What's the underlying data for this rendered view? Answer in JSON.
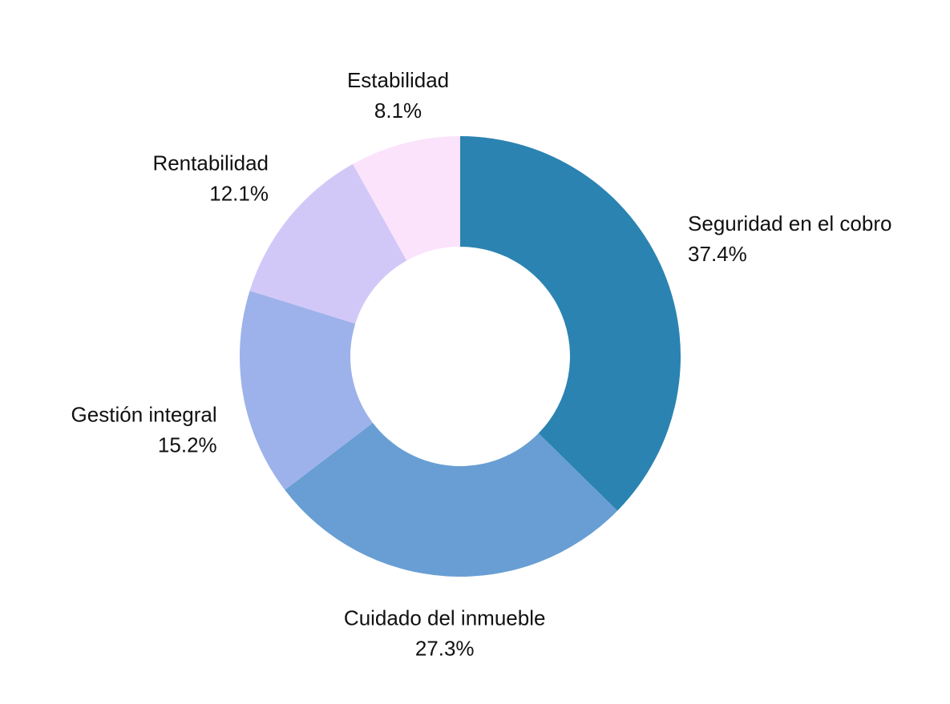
{
  "chart_data": {
    "type": "donut",
    "categories": [
      "Seguridad en el cobro",
      "Cuidado del inmueble",
      "Gestión integral",
      "Rentabilidad",
      "Estabilidad"
    ],
    "values": [
      37.4,
      27.3,
      15.2,
      12.1,
      8.1
    ],
    "value_labels": [
      "37.4%",
      "27.3%",
      "15.2%",
      "12.1%",
      "8.1%"
    ],
    "colors": [
      "#2b83b1",
      "#689ed3",
      "#9db2ea",
      "#d2c8f8",
      "#fbe3fb"
    ]
  }
}
